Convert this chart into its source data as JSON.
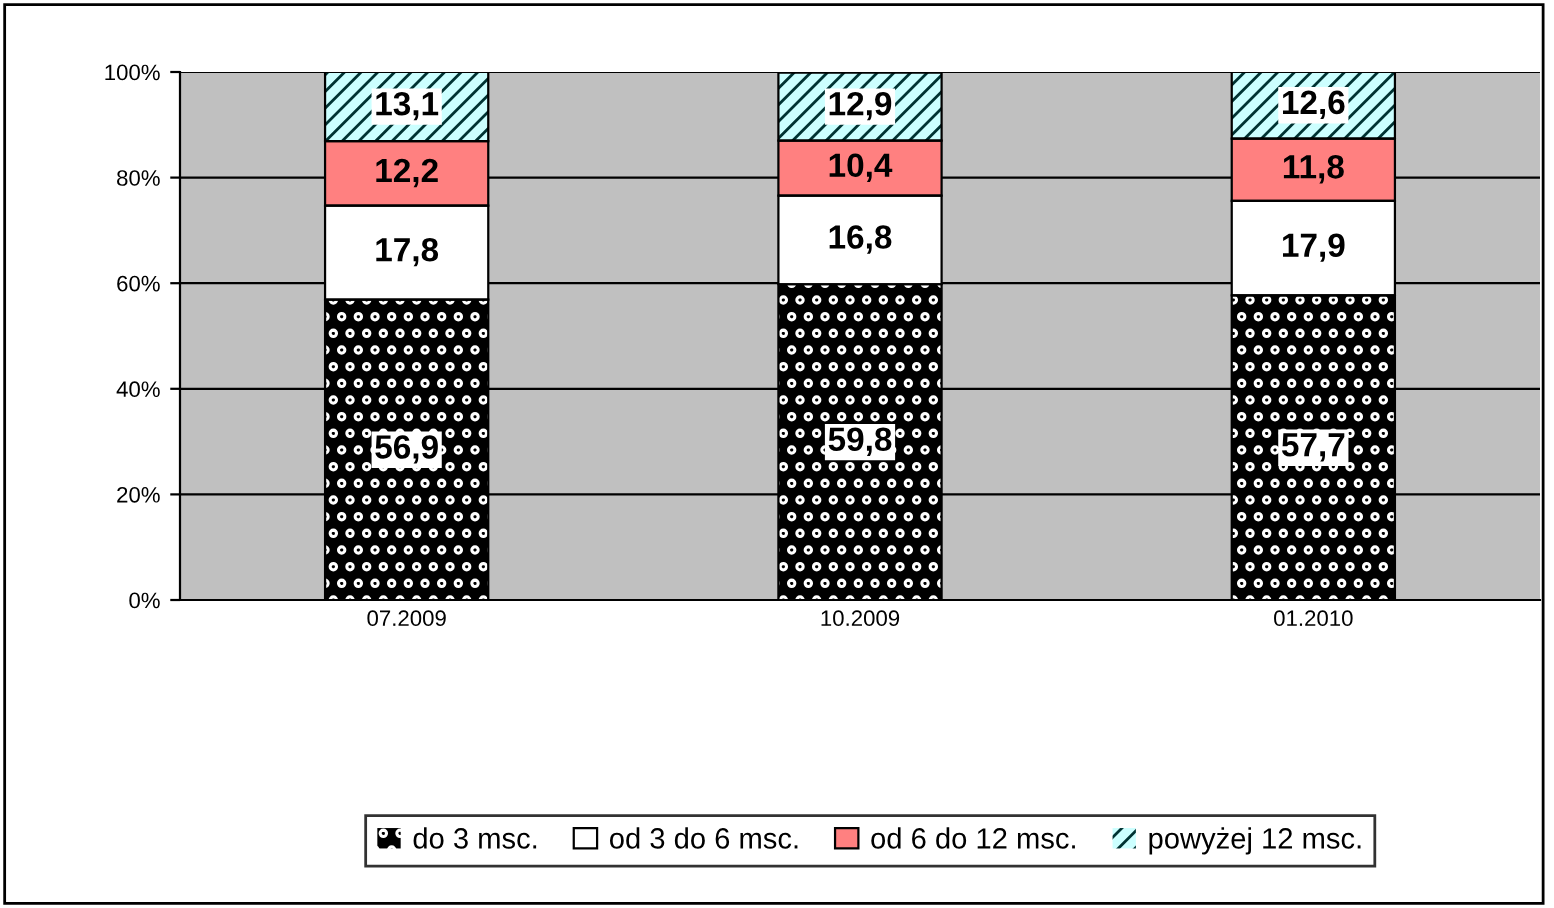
{
  "chart_data": {
    "type": "bar",
    "stacked": true,
    "categories": [
      "07.2009",
      "10.2009",
      "01.2010"
    ],
    "series": [
      {
        "name": "do 3 msc.",
        "color": "#000000",
        "values": [
          56.9,
          59.8,
          57.7
        ],
        "value_labels": [
          "56,9",
          "59,8",
          "57,7"
        ]
      },
      {
        "name": "od 3 do 6 msc.",
        "color": "#ffffff",
        "values": [
          17.8,
          16.8,
          17.9
        ],
        "value_labels": [
          "17,8",
          "16,8",
          "17,9"
        ]
      },
      {
        "name": "od 6 do 12 msc.",
        "color": "#ff8080",
        "values": [
          12.2,
          10.4,
          11.8
        ],
        "value_labels": [
          "12,2",
          "10,4",
          "11,8"
        ]
      },
      {
        "name": "powyżej 12 msc.",
        "color": "#ccffff",
        "values": [
          13.1,
          12.9,
          12.6
        ],
        "value_labels": [
          "13,1",
          "12,9",
          "12,6"
        ]
      }
    ],
    "ylim": [
      0,
      100
    ],
    "yticks": [
      {
        "value": 0,
        "label": "0%"
      },
      {
        "value": 20,
        "label": "20%"
      },
      {
        "value": 40,
        "label": "40%"
      },
      {
        "value": 60,
        "label": "60%"
      },
      {
        "value": 80,
        "label": "80%"
      },
      {
        "value": 100,
        "label": "100%"
      }
    ],
    "grid": "y",
    "legend": "bottom"
  }
}
